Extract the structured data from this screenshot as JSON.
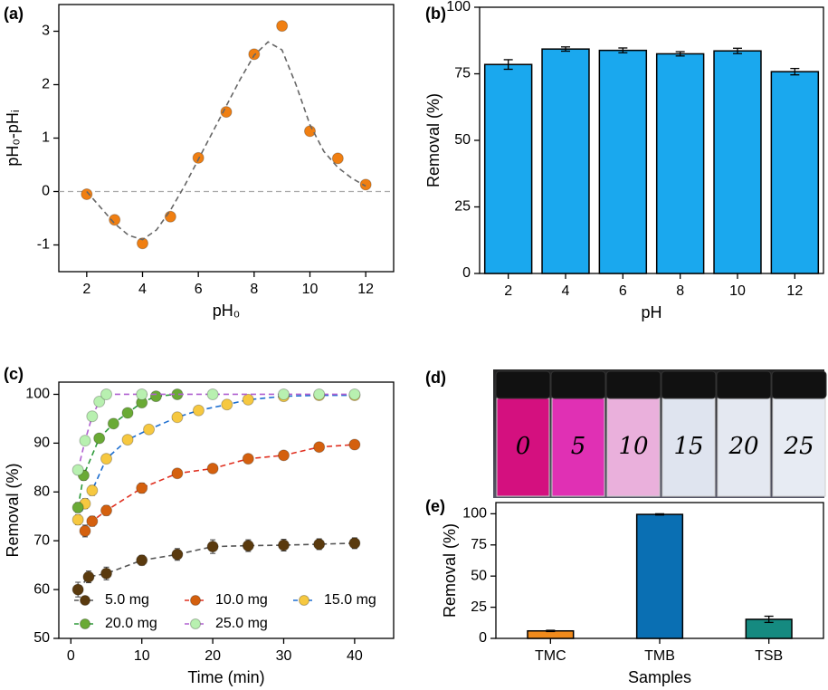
{
  "chart_data": [
    {
      "type": "scatter",
      "panel_label": "(a)",
      "xlabel": "pH₀",
      "ylabel": "pH₀-pHᵢ",
      "xlim": [
        1,
        13
      ],
      "xticks": [
        2,
        4,
        6,
        8,
        10,
        12
      ],
      "ylim": [
        -1.5,
        3.5
      ],
      "yticks": [
        -1,
        0,
        1,
        2,
        3
      ],
      "hline": 0,
      "hline_color": "#aaaaaa",
      "series": [
        {
          "style": "markers",
          "color": "#f07f12",
          "x": [
            2,
            3,
            4,
            5,
            6,
            7,
            8,
            9,
            10,
            11,
            12
          ],
          "values": [
            -0.05,
            -0.53,
            -0.97,
            -0.47,
            0.63,
            1.49,
            2.57,
            3.1,
            1.13,
            0.62,
            0.13
          ]
        },
        {
          "style": "line",
          "line_color": "#666666",
          "x": [
            2,
            2.5,
            3,
            3.5,
            4,
            4.5,
            5,
            5.5,
            6,
            6.5,
            7,
            7.5,
            8,
            8.5,
            9,
            9.5,
            10,
            10.5,
            11,
            11.5,
            12
          ],
          "values": [
            0,
            -0.3,
            -0.6,
            -0.82,
            -0.9,
            -0.72,
            -0.35,
            0.1,
            0.6,
            1.1,
            1.6,
            2.1,
            2.55,
            2.8,
            2.65,
            2.0,
            1.25,
            0.75,
            0.45,
            0.25,
            0.1
          ]
        }
      ]
    },
    {
      "type": "bar",
      "panel_label": "(b)",
      "xlabel": "pH",
      "ylabel": "Removal (%)",
      "categories": [
        "2",
        "4",
        "6",
        "8",
        "10",
        "12"
      ],
      "values": [
        78.5,
        84.3,
        83.8,
        82.5,
        83.6,
        75.8
      ],
      "errors": [
        1.8,
        0.8,
        0.9,
        0.8,
        1.0,
        1.2
      ],
      "color": "#1aa8ee",
      "ylim": [
        0,
        100
      ],
      "yticks": [
        0,
        25,
        50,
        75,
        100
      ]
    },
    {
      "type": "scatter",
      "panel_label": "(c)",
      "xlabel": "Time (min)",
      "ylabel": "Removal (%)",
      "xlim": [
        -1.7,
        45.5
      ],
      "xticks": [
        0,
        10,
        20,
        30,
        40
      ],
      "ylim": [
        50,
        102.5
      ],
      "yticks": [
        50,
        60,
        70,
        80,
        90,
        100
      ],
      "series": [
        {
          "name": "5.0 mg",
          "style": "markers+line",
          "color": "#5a3a0e",
          "line_color": "#555555",
          "x": [
            1,
            2.5,
            5,
            10,
            15,
            20,
            25,
            30,
            35,
            40
          ],
          "values": [
            60,
            62.6,
            63.3,
            66,
            67.2,
            68.8,
            69,
            69.1,
            69.3,
            69.5
          ],
          "errors": [
            1.5,
            1.2,
            1.3,
            1.0,
            1.2,
            1.4,
            1.2,
            1.2,
            1.1,
            1.1
          ]
        },
        {
          "name": "10.0 mg",
          "style": "markers+line",
          "color": "#d4600e",
          "line_color": "#e03020",
          "x": [
            2,
            3,
            5,
            10,
            15,
            20,
            25,
            30,
            35,
            40
          ],
          "values": [
            72,
            74,
            76.2,
            80.8,
            83.8,
            84.8,
            86.8,
            87.5,
            89.2,
            89.7
          ],
          "errors": [
            1.2,
            1.0,
            1.0,
            1.0,
            0.8,
            0.8,
            0.8,
            0.7,
            0.7,
            0.6
          ]
        },
        {
          "name": "15.0 mg",
          "style": "markers+line",
          "color": "#f6c840",
          "line_color": "#1e6fd0",
          "x": [
            1,
            2,
            3,
            5,
            8,
            11,
            15,
            18,
            22,
            25,
            30,
            35,
            40
          ],
          "values": [
            74.3,
            77.6,
            80.3,
            86.8,
            90.7,
            92.8,
            95.3,
            96.7,
            97.9,
            98.9,
            99.6,
            99.8,
            99.8
          ],
          "errors": [
            1,
            1,
            1,
            0.8,
            0.6,
            0.5,
            0.5,
            0.4,
            0.4,
            0.3,
            0.3,
            0.3,
            0.3
          ]
        },
        {
          "name": "20.0 mg",
          "style": "markers+line",
          "color": "#6aaa35",
          "line_color": "#2e9a3a",
          "x": [
            1,
            1.8,
            4,
            6,
            8,
            10,
            12,
            15
          ],
          "values": [
            76.8,
            83.4,
            91,
            94,
            96.2,
            98.3,
            99.6,
            100
          ],
          "errors": [
            1,
            1,
            0.8,
            0.6,
            0.5,
            0.4,
            0.3,
            0.3
          ]
        },
        {
          "name": "25.0 mg",
          "style": "markers+line",
          "color": "#b8f0b0",
          "line_color": "#b060d0",
          "x": [
            1,
            2,
            3,
            4,
            5,
            10,
            20,
            30,
            35,
            40
          ],
          "values": [
            84.5,
            90.5,
            95.5,
            98.5,
            100,
            100,
            100,
            100,
            100,
            100
          ],
          "errors": [
            0.8,
            0.6,
            0.5,
            0.4,
            0.3,
            0.3,
            0.3,
            0.3,
            0.3,
            0.3
          ]
        }
      ]
    },
    {
      "type": "bar",
      "panel_label": "(e)",
      "xlabel": "Samples",
      "ylabel": "Removal (%)",
      "categories": [
        "TMC",
        "TMB",
        "TSB"
      ],
      "values": [
        6,
        99.5,
        15.3
      ],
      "errors": [
        0.5,
        0.5,
        2.5
      ],
      "colors": [
        "#f08a1c",
        "#0a6fb3",
        "#158a80"
      ],
      "ylim": [
        0,
        109
      ],
      "yticks": [
        0,
        25,
        50,
        75,
        100
      ]
    }
  ],
  "photo": {
    "panel_label": "(d)",
    "vial_labels": [
      "0",
      "5",
      "10",
      "15",
      "20",
      "25"
    ]
  }
}
